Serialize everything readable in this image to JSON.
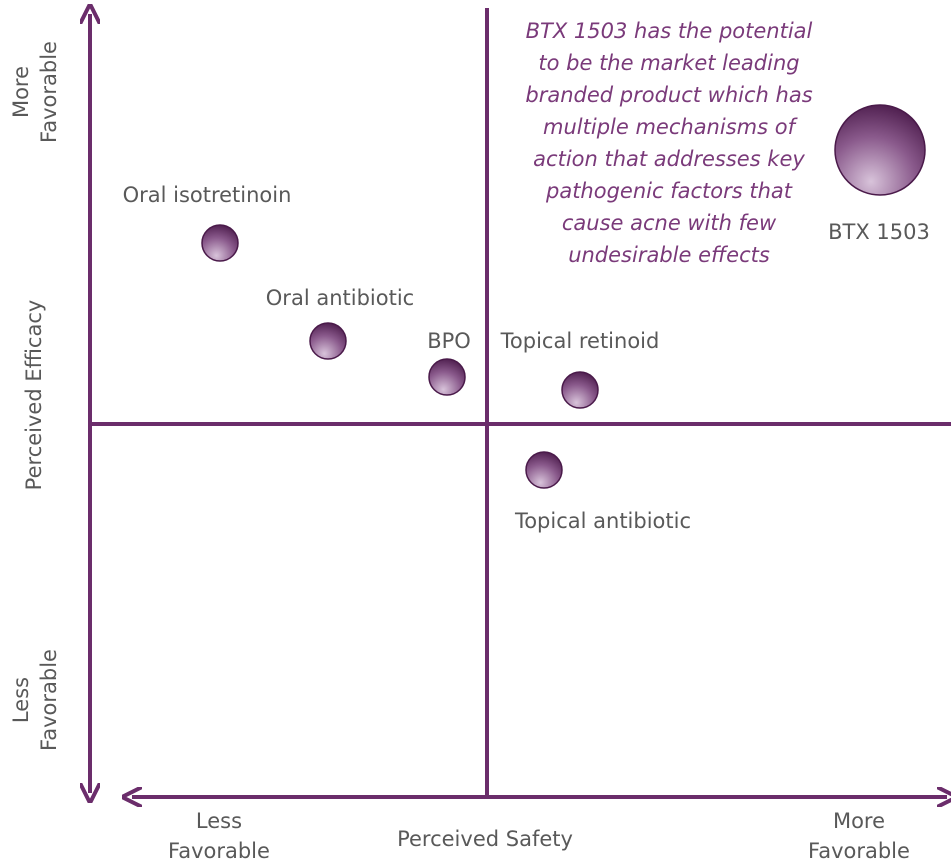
{
  "y_axis": {
    "title": "Perceived Efficacy",
    "top": [
      "More",
      "Favorable"
    ],
    "bottom": [
      "Less",
      "Favorable"
    ]
  },
  "x_axis": {
    "title": "Perceived Safety",
    "left": [
      "Less",
      "Favorable"
    ],
    "right": [
      "More",
      "Favorable"
    ]
  },
  "items": [
    "Oral isotretinoin",
    "Oral antibiotic",
    "BPO",
    "Topical retinoid",
    "Topical antibiotic",
    "BTX 1503"
  ],
  "annotation": [
    "BTX 1503 has the potential",
    "to be the market leading",
    "branded product which has",
    "multiple mechanisms of",
    "action that addresses key",
    "pathogenic factors that",
    "cause acne with few",
    "undesirable effects"
  ]
}
